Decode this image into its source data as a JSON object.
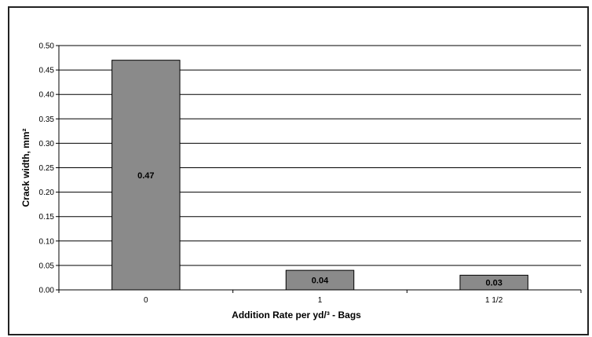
{
  "chart_data": {
    "type": "bar",
    "categories": [
      "0",
      "1",
      "1 1/2"
    ],
    "values": [
      0.47,
      0.04,
      0.03
    ],
    "data_labels": [
      "0.47",
      "0.04",
      "0.03"
    ],
    "title": "",
    "xlabel": "Addition Rate per yd/³ - Bags",
    "ylabel": "Crack width, mm²",
    "ylim": [
      0,
      0.5
    ],
    "yticks": [
      "0.00",
      "0.05",
      "0.10",
      "0.15",
      "0.20",
      "0.25",
      "0.30",
      "0.35",
      "0.40",
      "0.45",
      "0.50"
    ],
    "grid": true,
    "legend": "none",
    "bar_color": "#8a8a8a"
  }
}
